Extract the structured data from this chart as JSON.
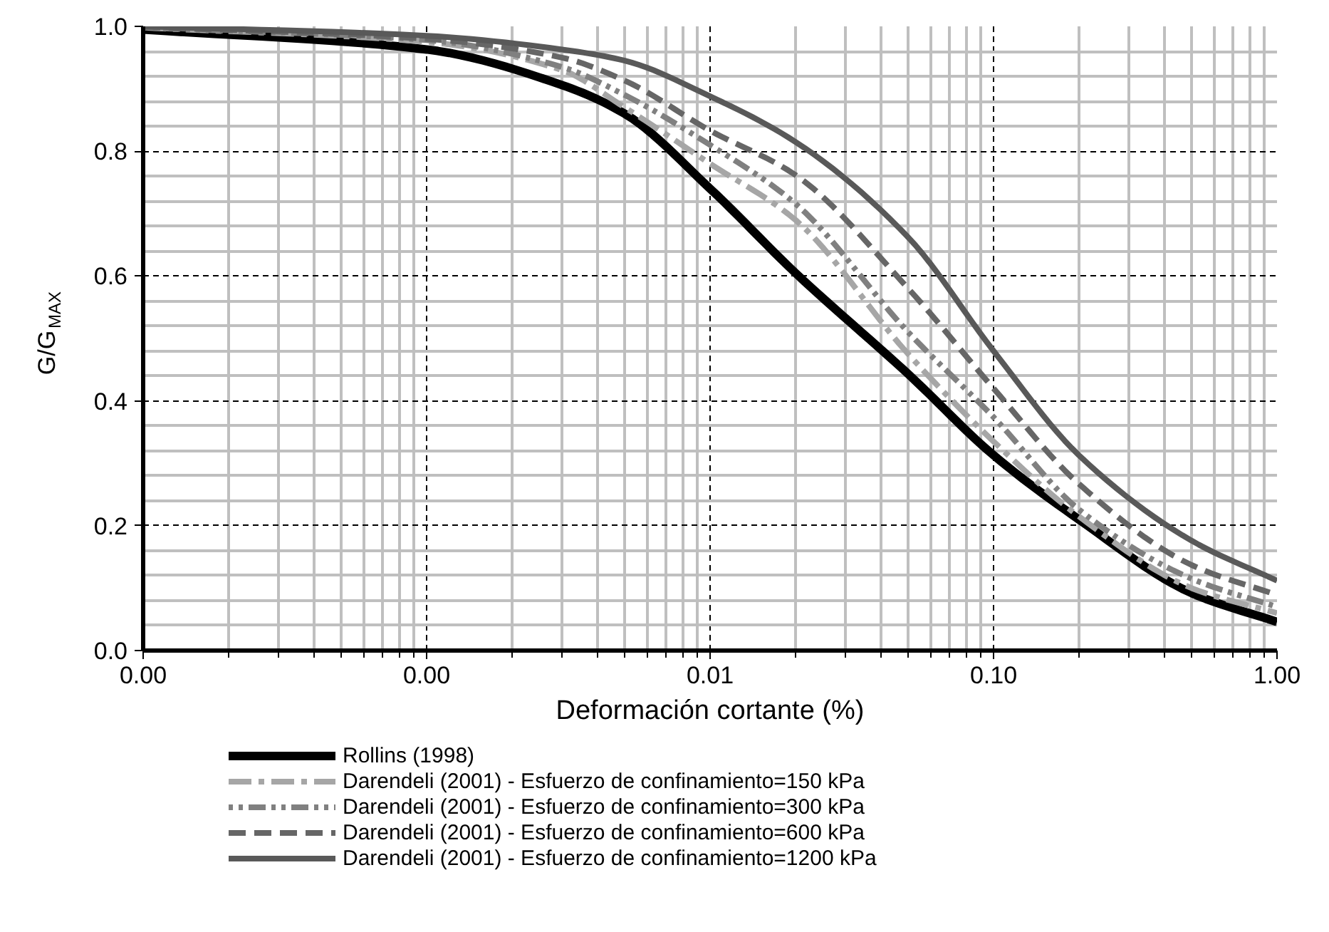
{
  "chart_data": {
    "type": "line",
    "xlabel": "Deformación cortante (%)",
    "ylabel": "G/G$_{MAX}$",
    "log": "x",
    "grid": true,
    "legend": "bottom",
    "marker": "none",
    "xlim": [
      0.0001,
      1
    ],
    "ylim": [
      0,
      1
    ],
    "xticks": [
      {
        "value": 0.0001,
        "label": "0.00"
      },
      {
        "value": 0.001,
        "label": "0.00"
      },
      {
        "value": 0.01,
        "label": "0.01"
      },
      {
        "value": 0.1,
        "label": "0.10"
      },
      {
        "value": 1,
        "label": "1.00"
      }
    ],
    "yticks": [
      {
        "value": 0,
        "label": "0.0"
      },
      {
        "value": 0.2,
        "label": "0.2"
      },
      {
        "value": 0.4,
        "label": "0.4"
      },
      {
        "value": 0.6,
        "label": "0.6"
      },
      {
        "value": 0.8,
        "label": "0.8"
      },
      {
        "value": 1,
        "label": "1.0"
      }
    ],
    "x": [
      0.0001,
      0.001,
      0.003,
      0.005,
      0.01,
      0.02,
      0.05,
      0.1,
      0.2,
      0.5,
      1
    ],
    "series": [
      {
        "name": "Rollins (1998)",
        "color": "#000000",
        "line_style": "solid",
        "values": [
          0.995,
          0.963,
          0.906,
          0.86,
          0.74,
          0.605,
          0.443,
          0.313,
          0.21,
          0.092,
          0.046
        ]
      },
      {
        "name": "Darendeli (2001) - Esfuerzo de confinamiento=150 kPa",
        "color": "#a6a6a6",
        "line_style": "dashdot",
        "values": [
          0.998,
          0.975,
          0.93,
          0.87,
          0.78,
          0.69,
          0.475,
          0.335,
          0.215,
          0.1,
          0.06
        ]
      },
      {
        "name": "Darendeli (2001) - Esfuerzo de confinamiento=300 kPa",
        "color": "#808080",
        "line_style": "dotted",
        "values": [
          0.998,
          0.978,
          0.935,
          0.89,
          0.81,
          0.716,
          0.51,
          0.374,
          0.226,
          0.115,
          0.07
        ]
      },
      {
        "name": "Darendeli (2001) - Esfuerzo de confinamiento=600 kPa",
        "color": "#666666",
        "line_style": "dashed",
        "values": [
          0.999,
          0.98,
          0.95,
          0.913,
          0.833,
          0.762,
          0.58,
          0.42,
          0.267,
          0.137,
          0.089
        ]
      },
      {
        "name": "Darendeli (2001) - Esfuerzo de confinamiento=1200 kPa",
        "color": "#595959",
        "line_style": "solid",
        "values": [
          1.0,
          0.985,
          0.963,
          0.945,
          0.888,
          0.815,
          0.662,
          0.48,
          0.313,
          0.176,
          0.112
        ]
      }
    ]
  }
}
